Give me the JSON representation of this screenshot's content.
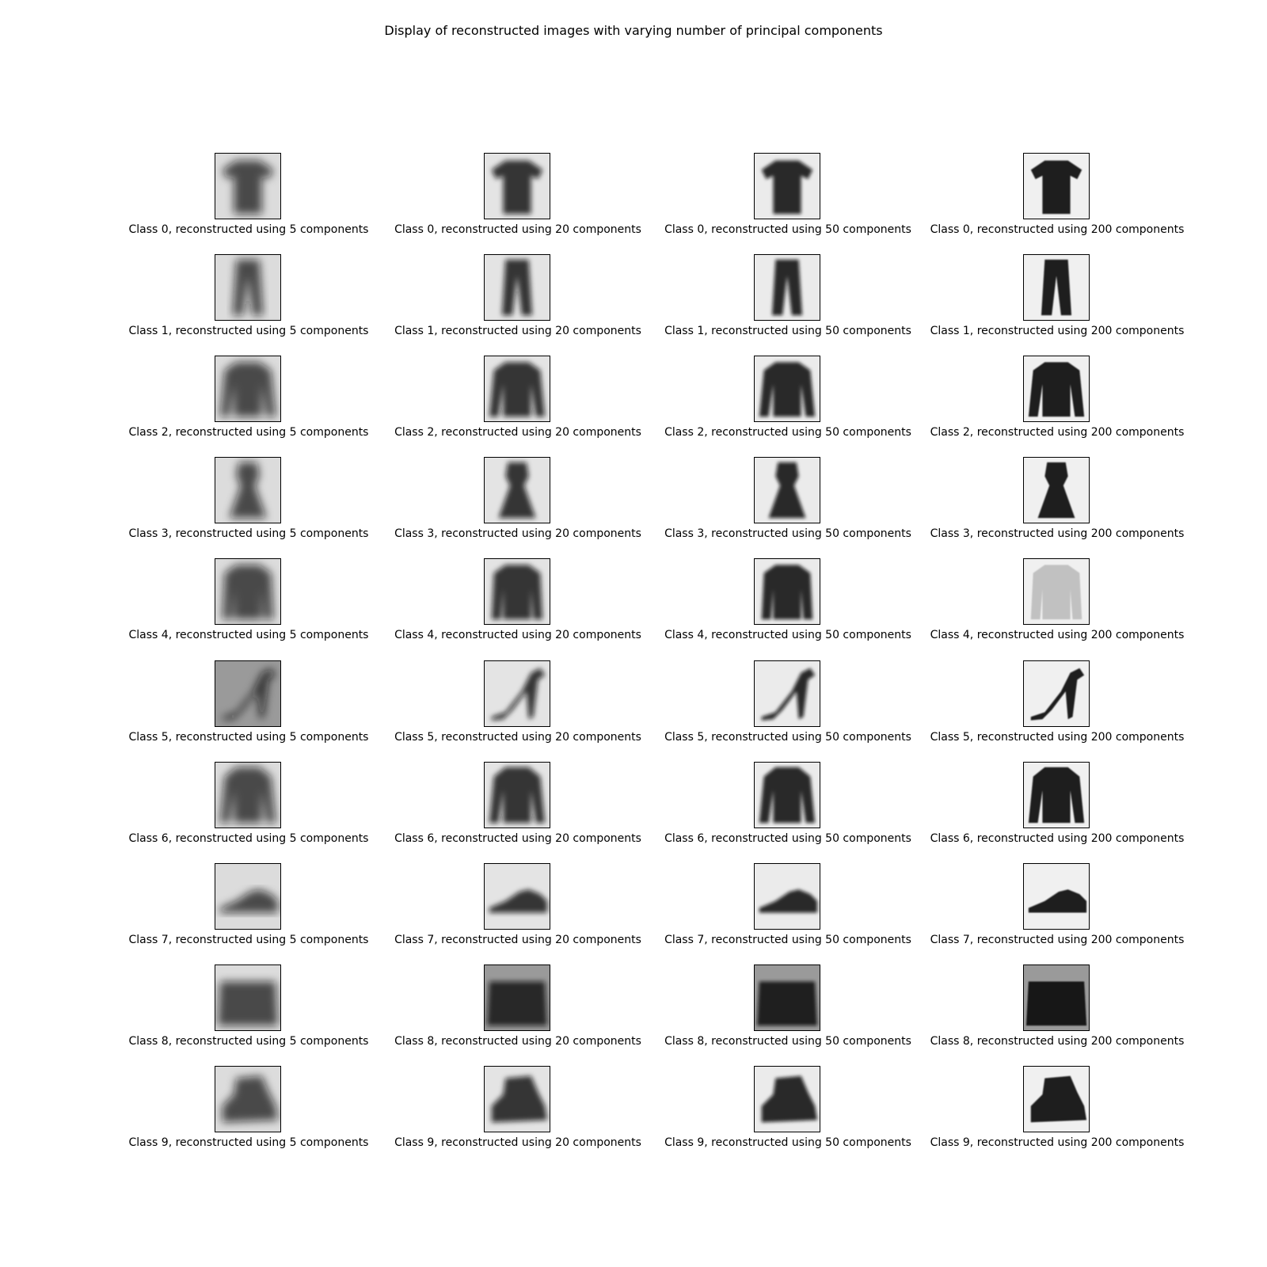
{
  "title": "Display of reconstructed images with varying number of principal components",
  "columns": [
    5,
    20,
    50,
    200
  ],
  "rows": [
    {
      "class": 0,
      "item": "t-shirt",
      "captions": [
        "Class 0, reconstructed using 5 components",
        "Class 0, reconstructed using 20 components",
        "Class 0, reconstructed using 50 components",
        "Class 0, reconstructed using 200 components"
      ]
    },
    {
      "class": 1,
      "item": "trouser",
      "captions": [
        "Class 1, reconstructed using 5 components",
        "Class 1, reconstructed using 20 components",
        "Class 1, reconstructed using 50 components",
        "Class 1, reconstructed using 200 components"
      ]
    },
    {
      "class": 2,
      "item": "pullover",
      "captions": [
        "Class 2, reconstructed using 5 components",
        "Class 2, reconstructed using 20 components",
        "Class 2, reconstructed using 50 components",
        "Class 2, reconstructed using 200 components"
      ]
    },
    {
      "class": 3,
      "item": "dress",
      "captions": [
        "Class 3, reconstructed using 5 components",
        "Class 3, reconstructed using 20 components",
        "Class 3, reconstructed using 50 components",
        "Class 3, reconstructed using 200 components"
      ]
    },
    {
      "class": 4,
      "item": "coat",
      "captions": [
        "Class 4, reconstructed using 5 components",
        "Class 4, reconstructed using 20 components",
        "Class 4, reconstructed using 50 components",
        "Class 4, reconstructed using 200 components"
      ]
    },
    {
      "class": 5,
      "item": "sandal",
      "captions": [
        "Class 5, reconstructed using 5 components",
        "Class 5, reconstructed using 20 components",
        "Class 5, reconstructed using 50 components",
        "Class 5, reconstructed using 200 components"
      ]
    },
    {
      "class": 6,
      "item": "shirt",
      "captions": [
        "Class 6, reconstructed using 5 components",
        "Class 6, reconstructed using 20 components",
        "Class 6, reconstructed using 50 components",
        "Class 6, reconstructed using 200 components"
      ]
    },
    {
      "class": 7,
      "item": "sneaker",
      "captions": [
        "Class 7, reconstructed using 5 components",
        "Class 7, reconstructed using 20 components",
        "Class 7, reconstructed using 50 components",
        "Class 7, reconstructed using 200 components"
      ]
    },
    {
      "class": 8,
      "item": "bag",
      "captions": [
        "Class 8, reconstructed using 5 components",
        "Class 8, reconstructed using 20 components",
        "Class 8, reconstructed using 50 components",
        "Class 8, reconstructed using 200 components"
      ]
    },
    {
      "class": 9,
      "item": "ankle-boot",
      "captions": [
        "Class 9, reconstructed using 5 components",
        "Class 9, reconstructed using 20 components",
        "Class 9, reconstructed using 50 components",
        "Class 9, reconstructed using 200 components"
      ]
    }
  ],
  "colors": {
    "ink": "#111111",
    "background_light": "#f2f2f2",
    "background_dark": "#8a8a8a",
    "frame": "#000000"
  }
}
